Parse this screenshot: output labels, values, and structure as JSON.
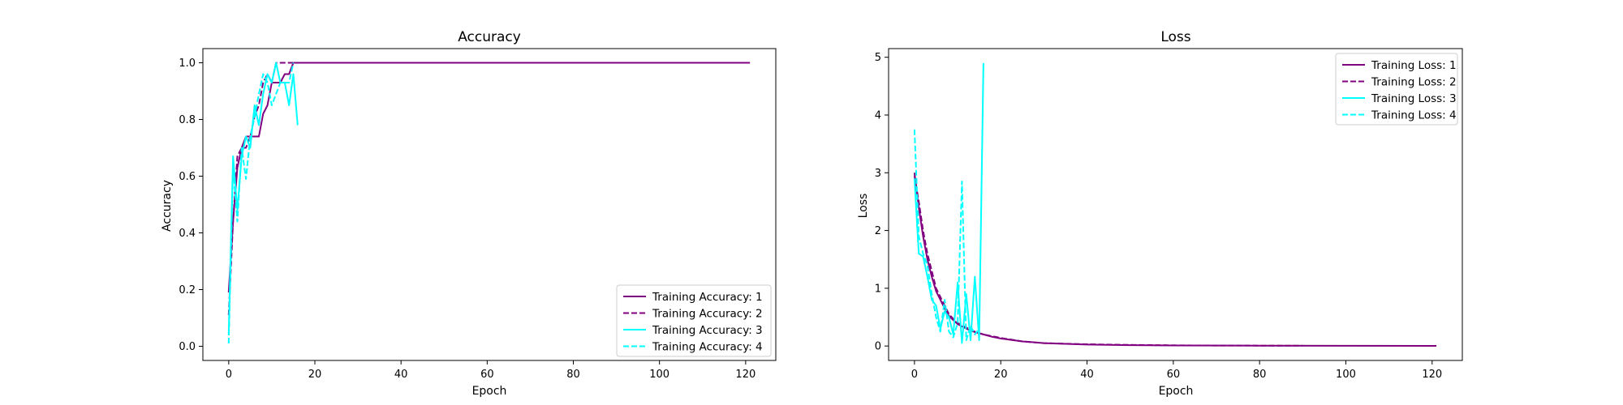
{
  "colors": {
    "series_1_2": "#800080",
    "series_3_4": "#00ffff",
    "axes": "#000000",
    "legend_border": "#cccccc"
  },
  "chart_data": [
    {
      "type": "line",
      "title": "Accuracy",
      "xlabel": "Epoch",
      "ylabel": "Accuracy",
      "xlim": [
        -6,
        127
      ],
      "ylim": [
        -0.05,
        1.05
      ],
      "xticks": [
        0,
        20,
        40,
        60,
        80,
        100,
        120
      ],
      "yticks": [
        0.0,
        0.2,
        0.4,
        0.6,
        0.8,
        1.0
      ],
      "ytick_labels": [
        "0.0",
        "0.2",
        "0.4",
        "0.6",
        "0.8",
        "1.0"
      ],
      "grid": false,
      "legend": "lower-right",
      "series": [
        {
          "name": "Training Accuracy: 1",
          "color": "#800080",
          "dash": "solid",
          "x": [
            0,
            1,
            2,
            3,
            4,
            5,
            6,
            7,
            8,
            9,
            10,
            11,
            12,
            13,
            14,
            15,
            121
          ],
          "y": [
            0.19,
            0.44,
            0.63,
            0.7,
            0.74,
            0.74,
            0.74,
            0.74,
            0.82,
            0.85,
            0.93,
            0.93,
            0.93,
            0.96,
            0.96,
            1.0,
            1.0
          ]
        },
        {
          "name": "Training Accuracy: 2",
          "color": "#800080",
          "dash": "dashed",
          "x": [
            0,
            1,
            2,
            3,
            4,
            5,
            6,
            7,
            8,
            9,
            10,
            11,
            12,
            13,
            14,
            90
          ],
          "y": [
            0.11,
            0.44,
            0.67,
            0.7,
            0.7,
            0.74,
            0.81,
            0.85,
            0.93,
            0.96,
            0.93,
            1.0,
            1.0,
            1.0,
            1.0,
            1.0
          ]
        },
        {
          "name": "Training Accuracy: 3",
          "color": "#00ffff",
          "dash": "solid",
          "x": [
            0,
            1,
            2,
            3,
            4,
            5,
            6,
            7,
            8,
            9,
            10,
            11,
            12,
            13,
            14,
            15,
            16
          ],
          "y": [
            0.04,
            0.67,
            0.48,
            0.67,
            0.74,
            0.7,
            0.85,
            0.78,
            0.89,
            0.96,
            0.93,
            1.0,
            0.93,
            0.93,
            0.85,
            0.96,
            0.78
          ]
        },
        {
          "name": "Training Accuracy: 4",
          "color": "#00ffff",
          "dash": "dashed",
          "x": [
            0,
            1,
            2,
            3,
            4,
            5,
            6,
            7,
            8,
            9,
            10,
            11,
            12,
            13,
            14,
            15
          ],
          "y": [
            0.01,
            0.63,
            0.44,
            0.7,
            0.59,
            0.74,
            0.81,
            0.89,
            0.96,
            0.93,
            0.85,
            0.89,
            0.93,
            0.93,
            0.93,
            1.0
          ]
        }
      ]
    },
    {
      "type": "line",
      "title": "Loss",
      "xlabel": "Epoch",
      "ylabel": "Loss",
      "xlim": [
        -6,
        127
      ],
      "ylim": [
        -0.25,
        5.15
      ],
      "xticks": [
        0,
        20,
        40,
        60,
        80,
        100,
        120
      ],
      "yticks": [
        0,
        1,
        2,
        3,
        4,
        5
      ],
      "ytick_labels": [
        "0",
        "1",
        "2",
        "3",
        "4",
        "5"
      ],
      "grid": false,
      "legend": "upper-right",
      "series": [
        {
          "name": "Training Loss: 1",
          "color": "#800080",
          "dash": "solid",
          "x": [
            0,
            1,
            2,
            3,
            4,
            5,
            6,
            7,
            8,
            9,
            10,
            12,
            14,
            16,
            18,
            20,
            25,
            30,
            40,
            50,
            60,
            80,
            100,
            121
          ],
          "y": [
            3.0,
            2.4,
            1.9,
            1.5,
            1.2,
            0.95,
            0.8,
            0.65,
            0.52,
            0.45,
            0.38,
            0.3,
            0.24,
            0.2,
            0.16,
            0.13,
            0.08,
            0.05,
            0.025,
            0.015,
            0.01,
            0.006,
            0.004,
            0.003
          ]
        },
        {
          "name": "Training Loss: 2",
          "color": "#800080",
          "dash": "dashed",
          "x": [
            0,
            1,
            2,
            3,
            4,
            5,
            6,
            7,
            8,
            9,
            10,
            12,
            14,
            16,
            18,
            20,
            25,
            30,
            40,
            50,
            60,
            70,
            80,
            90
          ],
          "y": [
            2.95,
            2.5,
            2.0,
            1.6,
            1.3,
            1.0,
            0.85,
            0.7,
            0.55,
            0.47,
            0.4,
            0.32,
            0.25,
            0.2,
            0.17,
            0.14,
            0.08,
            0.05,
            0.03,
            0.02,
            0.012,
            0.008,
            0.006,
            0.005
          ]
        },
        {
          "name": "Training Loss: 3",
          "color": "#00ffff",
          "dash": "solid",
          "x": [
            0,
            1,
            2,
            3,
            4,
            5,
            6,
            7,
            8,
            9,
            10,
            11,
            12,
            13,
            14,
            15,
            16
          ],
          "y": [
            2.9,
            1.6,
            1.55,
            1.2,
            0.8,
            0.7,
            0.3,
            0.6,
            0.5,
            0.2,
            1.1,
            0.05,
            0.9,
            0.1,
            1.2,
            0.1,
            4.9
          ]
        },
        {
          "name": "Training Loss: 4",
          "color": "#00ffff",
          "dash": "dashed",
          "x": [
            0,
            1,
            2,
            3,
            4,
            5,
            6,
            7,
            8,
            9,
            10,
            11,
            12,
            13,
            14,
            15
          ],
          "y": [
            3.75,
            1.9,
            1.6,
            1.4,
            0.9,
            0.5,
            0.25,
            0.8,
            0.25,
            0.15,
            0.4,
            2.85,
            0.1,
            0.35,
            0.2,
            0.3
          ]
        }
      ]
    }
  ]
}
